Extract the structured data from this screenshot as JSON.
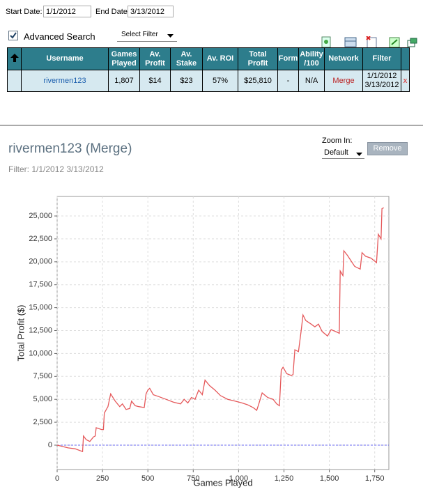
{
  "form": {
    "start_label": "Start Date:",
    "start_value": "1/1/2012",
    "end_label": "End Date:",
    "end_value": "3/13/2012",
    "advanced_search": "Advanced Search",
    "filter_select": "Select Filter"
  },
  "table": {
    "headers": [
      "Username",
      "Games Played",
      "Av. Profit",
      "Av. Stake",
      "Av. ROI",
      "Total Profit",
      "Form",
      "Ability /100",
      "Network",
      "Filter"
    ],
    "rows": [
      [
        "rivermen123",
        "1,807",
        "$14",
        "$23",
        "57%",
        "$25,810",
        "-",
        "N/A",
        "Merge",
        "1/1/2012 3/13/2012",
        "x"
      ]
    ]
  },
  "profile": {
    "title": "rivermen123 (Merge)",
    "filter": "Filter: 1/1/2012 3/13/2012",
    "zoom_label": "Zoom In:",
    "zoom_value": "Default",
    "remove_button": "Remove"
  },
  "chart_data": {
    "type": "line",
    "x_label": "Games Played",
    "y_label": "Total Profit ($)",
    "x": [
      0,
      60,
      100,
      140,
      145,
      160,
      180,
      200,
      210,
      215,
      245,
      255,
      260,
      280,
      295,
      320,
      345,
      360,
      380,
      400,
      410,
      430,
      450,
      480,
      490,
      500,
      510,
      530,
      560,
      600,
      640,
      680,
      700,
      720,
      740,
      760,
      780,
      800,
      815,
      840,
      870,
      900,
      940,
      980,
      1020,
      1050,
      1080,
      1100,
      1110,
      1130,
      1160,
      1190,
      1210,
      1225,
      1235,
      1245,
      1265,
      1290,
      1300,
      1310,
      1330,
      1345,
      1355,
      1370,
      1400,
      1420,
      1440,
      1460,
      1490,
      1510,
      1545,
      1555,
      1560,
      1575,
      1580,
      1600,
      1640,
      1670,
      1680,
      1700,
      1730,
      1760,
      1770,
      1785,
      1790,
      1800
    ],
    "values": [
      0,
      -300,
      -400,
      -700,
      1000,
      600,
      400,
      900,
      1000,
      1900,
      1700,
      1700,
      3500,
      4200,
      5600,
      4800,
      4200,
      4500,
      3900,
      4000,
      4800,
      4300,
      4200,
      4100,
      5600,
      6000,
      6200,
      5500,
      5300,
      5000,
      4700,
      4500,
      5000,
      4600,
      5200,
      5000,
      6000,
      5500,
      7100,
      6500,
      6000,
      5400,
      5000,
      4800,
      4600,
      4400,
      4100,
      3800,
      4400,
      5700,
      5200,
      5000,
      4500,
      4300,
      8200,
      8500,
      7800,
      7600,
      7700,
      10400,
      10200,
      12500,
      14200,
      13600,
      13200,
      12900,
      13200,
      12400,
      11900,
      12600,
      12300,
      12200,
      19000,
      18500,
      21200,
      20700,
      19500,
      19200,
      21000,
      20600,
      20400,
      19900,
      23000,
      22500,
      25800,
      25900
    ],
    "color": "#e5585a",
    "xlim": [
      0,
      1828
    ],
    "ylim": [
      -2660,
      27130
    ],
    "xticks": [
      0,
      250,
      500,
      750,
      {
        "value": 1000,
        "label": "1,000"
      },
      {
        "value": 1250,
        "label": "1,250"
      },
      {
        "value": 1500,
        "label": "1,500"
      },
      {
        "value": 1750,
        "label": "1,750"
      }
    ],
    "yticks": [
      0,
      {
        "value": 2500,
        "label": "2,500"
      },
      {
        "value": 5000,
        "label": "5,000"
      },
      {
        "value": 7500,
        "label": "7,500"
      },
      {
        "value": 10000,
        "label": "10,000"
      },
      {
        "value": 12500,
        "label": "12,500"
      },
      {
        "value": 15000,
        "label": "15,000"
      },
      {
        "value": 17500,
        "label": "17,500"
      },
      {
        "value": 20000,
        "label": "20,000"
      },
      {
        "value": 22500,
        "label": "22,500"
      },
      {
        "value": 25000,
        "label": "25,000"
      }
    ],
    "grid": true,
    "reference_line": {
      "value": 0,
      "color": "#6a6af0"
    }
  }
}
